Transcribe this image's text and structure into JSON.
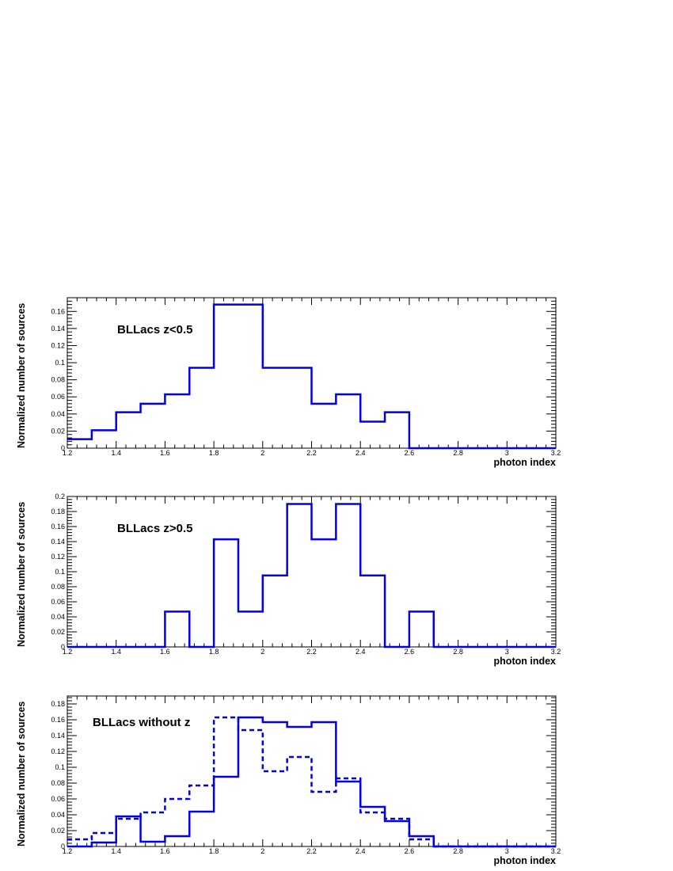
{
  "chart_data": [
    {
      "type": "step",
      "annotation": "BLLacs z<0.5",
      "xlabel": "photon index",
      "ylabel": "Normalized number of sources",
      "xlim": [
        1.2,
        3.2
      ],
      "ylim": [
        0,
        0.176
      ],
      "x_ticks": [
        "1.2",
        "1.4",
        "1.6",
        "1.8",
        "2",
        "2.2",
        "2.4",
        "2.6",
        "2.8",
        "3",
        "3.2"
      ],
      "y_ticks": [
        "0",
        "0.02",
        "0.04",
        "0.06",
        "0.08",
        "0.1",
        "0.12",
        "0.14",
        "0.16"
      ],
      "bin_edges": [
        1.2,
        1.3,
        1.4,
        1.5,
        1.6,
        1.7,
        1.8,
        1.9,
        2.0,
        2.1,
        2.2,
        2.3,
        2.4,
        2.5,
        2.6,
        2.7,
        2.8,
        2.9,
        3.0,
        3.1,
        3.2
      ],
      "series": [
        {
          "style": "solid",
          "color": "#0000ee",
          "values": [
            0.0105,
            0.021,
            0.042,
            0.052,
            0.063,
            0.094,
            0.168,
            0.168,
            0.094,
            0.094,
            0.052,
            0.063,
            0.031,
            0.042,
            0,
            0,
            0,
            0,
            0,
            0
          ]
        }
      ]
    },
    {
      "type": "step",
      "annotation": "BLLacs z>0.5",
      "xlabel": "photon index",
      "ylabel": "Normalized number of sources",
      "xlim": [
        1.2,
        3.2
      ],
      "ylim": [
        0,
        0.2
      ],
      "x_ticks": [
        "1.2",
        "1.4",
        "1.6",
        "1.8",
        "2",
        "2.2",
        "2.4",
        "2.6",
        "2.8",
        "3",
        "3.2"
      ],
      "y_ticks": [
        "0",
        "0.02",
        "0.04",
        "0.06",
        "0.08",
        "0.1",
        "0.12",
        "0.14",
        "0.16",
        "0.18",
        "0.2"
      ],
      "bin_edges": [
        1.2,
        1.3,
        1.4,
        1.5,
        1.6,
        1.7,
        1.8,
        1.9,
        2.0,
        2.1,
        2.2,
        2.3,
        2.4,
        2.5,
        2.6,
        2.7,
        2.8,
        2.9,
        3.0,
        3.1,
        3.2
      ],
      "series": [
        {
          "style": "solid",
          "color": "#0000ee",
          "values": [
            0,
            0,
            0,
            0,
            0.047,
            0,
            0.143,
            0.047,
            0.095,
            0.19,
            0.143,
            0.19,
            0.095,
            0,
            0.047,
            0,
            0,
            0,
            0,
            0
          ]
        }
      ]
    },
    {
      "type": "step",
      "annotation": "BLLacs without z",
      "xlabel": "photon index",
      "ylabel": "Normalized number of sources",
      "xlim": [
        1.2,
        3.2
      ],
      "ylim": [
        0,
        0.19
      ],
      "x_ticks": [
        "1.2",
        "1.4",
        "1.6",
        "1.8",
        "2",
        "2.2",
        "2.4",
        "2.6",
        "2.8",
        "3",
        "3.2"
      ],
      "y_ticks": [
        "0",
        "0.02",
        "0.04",
        "0.06",
        "0.08",
        "0.1",
        "0.12",
        "0.14",
        "0.16",
        "0.18"
      ],
      "bin_edges": [
        1.2,
        1.3,
        1.4,
        1.5,
        1.6,
        1.7,
        1.8,
        1.9,
        2.0,
        2.1,
        2.2,
        2.3,
        2.4,
        2.5,
        2.6,
        2.7,
        2.8,
        2.9,
        3.0,
        3.1,
        3.2
      ],
      "series": [
        {
          "style": "solid",
          "color": "#0000ee",
          "values": [
            0,
            0.005,
            0.038,
            0.006,
            0.013,
            0.044,
            0.088,
            0.163,
            0.157,
            0.151,
            0.157,
            0.082,
            0.05,
            0.032,
            0.013,
            0,
            0,
            0,
            0,
            0
          ]
        },
        {
          "style": "dashed",
          "color": "#0000ee",
          "values": [
            0.009,
            0.017,
            0.035,
            0.043,
            0.06,
            0.077,
            0.163,
            0.147,
            0.095,
            0.113,
            0.069,
            0.086,
            0.043,
            0.035,
            0.009,
            0,
            0,
            0,
            0,
            0
          ]
        }
      ]
    }
  ]
}
